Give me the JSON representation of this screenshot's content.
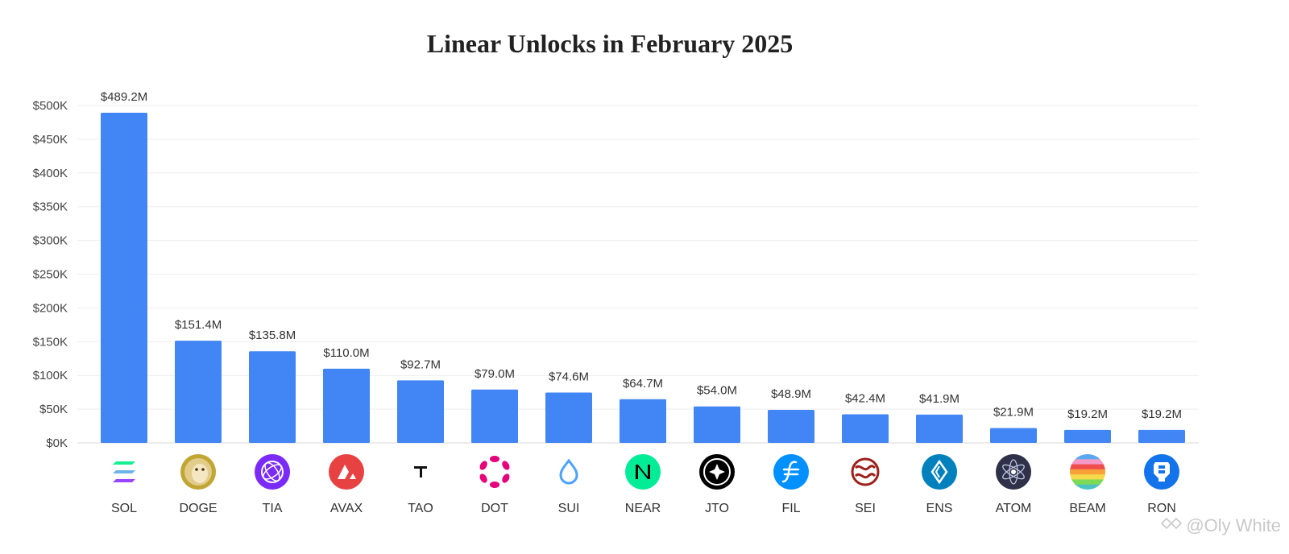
{
  "chart_data": {
    "type": "bar",
    "title": "Linear Unlocks in February 2025",
    "xlabel": "",
    "ylabel": "",
    "ylim": [
      0,
      500
    ],
    "y_ticks": [
      "$0K",
      "$50K",
      "$100K",
      "$150K",
      "$200K",
      "$250K",
      "$300K",
      "$350K",
      "$400K",
      "$450K",
      "$500K"
    ],
    "grid": true,
    "bar_color": "#4285f4",
    "categories": [
      "SOL",
      "DOGE",
      "TIA",
      "AVAX",
      "TAO",
      "DOT",
      "SUI",
      "NEAR",
      "JTO",
      "FIL",
      "SEI",
      "ENS",
      "ATOM",
      "BEAM",
      "RON"
    ],
    "values": [
      489.2,
      151.4,
      135.8,
      110.0,
      92.7,
      79.0,
      74.6,
      64.7,
      54.0,
      48.9,
      42.4,
      41.9,
      21.9,
      19.2,
      19.2
    ],
    "data_labels": [
      "$489.2M",
      "$151.4M",
      "$135.8M",
      "$110.0M",
      "$92.7M",
      "$79.0M",
      "$74.6M",
      "$64.7M",
      "$54.0M",
      "$48.9M",
      "$42.4M",
      "$41.9M",
      "$21.9M",
      "$19.2M",
      "$19.2M"
    ],
    "icons": [
      {
        "name": "sol-icon",
        "color": "#14f195"
      },
      {
        "name": "doge-icon",
        "color": "#c2a633"
      },
      {
        "name": "tia-icon",
        "color": "#7b2bf9"
      },
      {
        "name": "avax-icon",
        "color": "#e84142"
      },
      {
        "name": "tao-icon",
        "color": "#000000"
      },
      {
        "name": "dot-icon",
        "color": "#e6007a"
      },
      {
        "name": "sui-icon",
        "color": "#4da2ff"
      },
      {
        "name": "near-icon",
        "color": "#00ec97"
      },
      {
        "name": "jto-icon",
        "color": "#000000"
      },
      {
        "name": "fil-icon",
        "color": "#0090ff"
      },
      {
        "name": "sei-icon",
        "color": "#9e1f19"
      },
      {
        "name": "ens-icon",
        "color": "#0080bc"
      },
      {
        "name": "atom-icon",
        "color": "#2e3148"
      },
      {
        "name": "beam-icon",
        "color": "#4a90e2"
      },
      {
        "name": "ron-icon",
        "color": "#1273ea"
      }
    ]
  },
  "watermark": {
    "text": "@Oly White"
  }
}
